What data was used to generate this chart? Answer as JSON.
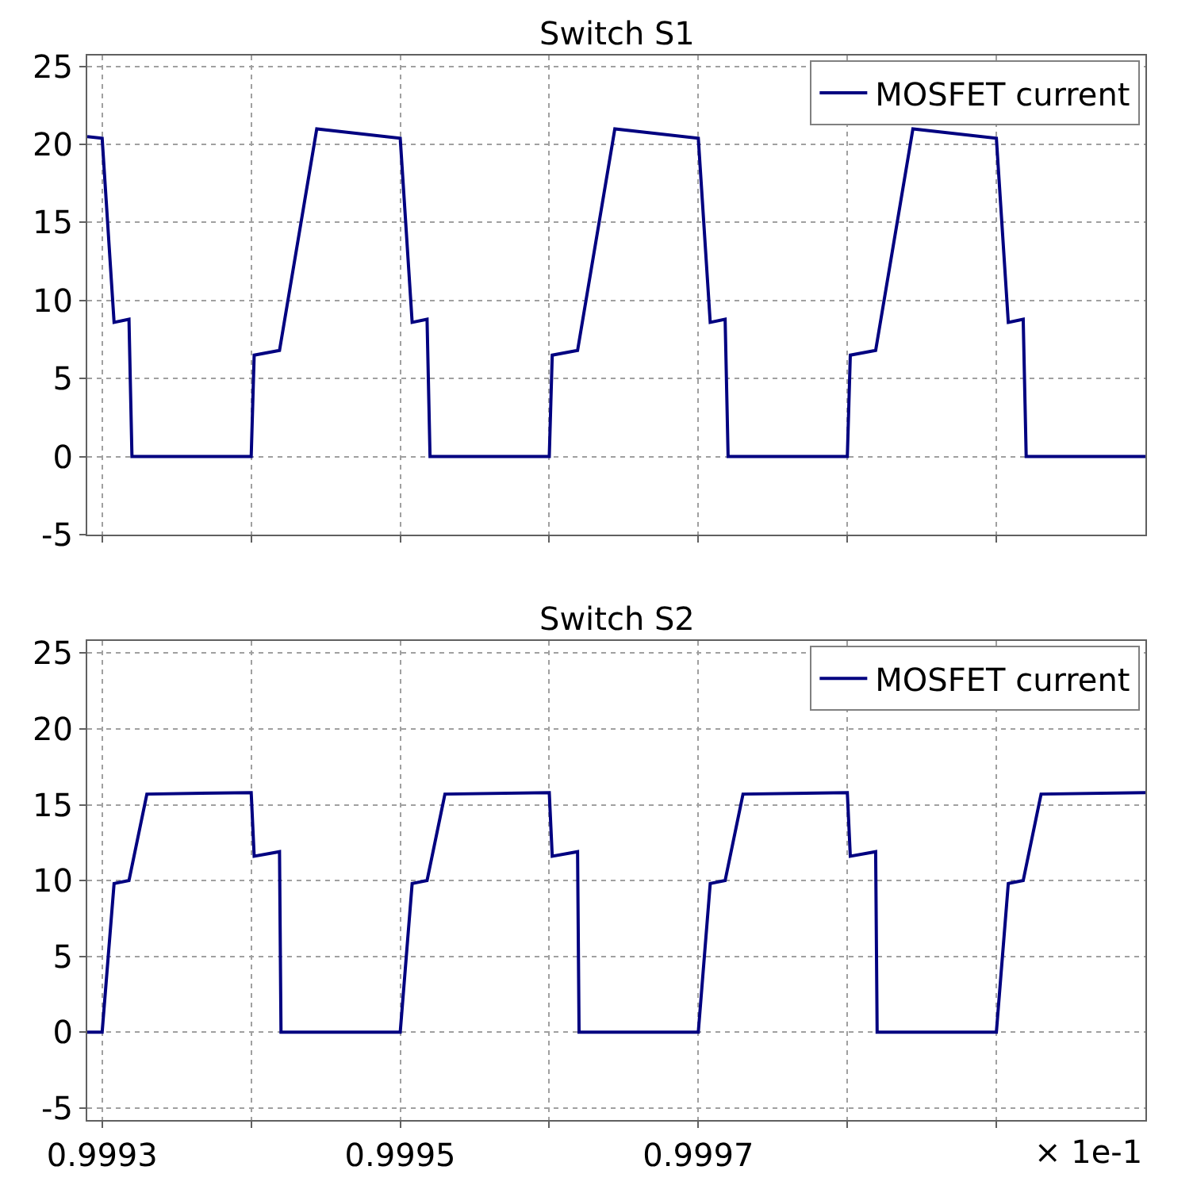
{
  "chart_data": [
    {
      "type": "line",
      "title": "Switch S1",
      "legend": "top right",
      "grid": true,
      "tick_labels": "y",
      "line_style": "solid",
      "marker": "none",
      "x": [
        0.99929,
        0.9993,
        0.999308,
        0.999318,
        0.99932,
        0.9994,
        0.999402,
        0.999419,
        0.999444,
        0.9995,
        0.999508,
        0.999518,
        0.99952,
        0.9996,
        0.999602,
        0.999619,
        0.999644,
        0.9997,
        0.999708,
        0.999718,
        0.99972,
        0.9998,
        0.999802,
        0.999819,
        0.999844,
        0.9999,
        0.999908,
        0.999918,
        0.99992,
        1.0
      ],
      "series": [
        {
          "name": "MOSFET current",
          "color": "#000080",
          "values": [
            20.5,
            20.4,
            8.6,
            8.8,
            0,
            0,
            6.5,
            6.8,
            21,
            20.4,
            8.6,
            8.8,
            0,
            0,
            6.5,
            6.8,
            21,
            20.4,
            8.6,
            8.8,
            0,
            0,
            6.5,
            6.8,
            21,
            20.4,
            8.6,
            8.8,
            0,
            0
          ]
        }
      ],
      "xlim": [
        0.99929,
        1.0
      ],
      "xticks": [
        0.9993,
        {
          "value": 0.9994,
          "label": null
        },
        0.9995,
        {
          "value": 0.9996,
          "label": null
        },
        0.9997,
        {
          "value": 0.9998,
          "label": null
        },
        {
          "value": 0.9999,
          "label": null
        }
      ],
      "ylim": [
        -5,
        25.7
      ],
      "yticks": [
        -5,
        0,
        5,
        10,
        15,
        20,
        25
      ]
    },
    {
      "type": "line",
      "title": "Switch S2",
      "legend": "top right",
      "grid": true,
      "line_style": "solid",
      "marker": "none",
      "x": [
        0.99929,
        0.9993,
        0.999308,
        0.999318,
        0.99933,
        0.9994,
        0.999402,
        0.999419,
        0.99942,
        0.9995,
        0.999508,
        0.999518,
        0.99953,
        0.9996,
        0.999602,
        0.999619,
        0.99962,
        0.9997,
        0.999708,
        0.999718,
        0.99973,
        0.9998,
        0.999802,
        0.999819,
        0.99982,
        0.9999,
        0.999908,
        0.999918,
        0.99993,
        1.0
      ],
      "series": [
        {
          "name": "MOSFET current",
          "color": "#000080",
          "values": [
            0,
            0,
            9.8,
            10,
            15.7,
            15.8,
            11.6,
            11.9,
            0,
            0,
            9.8,
            10,
            15.7,
            15.8,
            11.6,
            11.9,
            0,
            0,
            9.8,
            10,
            15.7,
            15.8,
            11.6,
            11.9,
            0,
            0,
            9.8,
            10,
            15.7,
            15.8
          ]
        }
      ],
      "xlim": [
        0.99929,
        1.0
      ],
      "xticks": [
        0.9993,
        {
          "value": 0.9994,
          "label": null
        },
        0.9995,
        {
          "value": 0.9996,
          "label": null
        },
        0.9997,
        {
          "value": 0.9998,
          "label": null
        },
        {
          "value": 0.9999,
          "label": null
        }
      ],
      "ylim": [
        -5.8,
        25.8
      ],
      "yticks": [
        -5,
        0,
        5,
        10,
        15,
        20,
        25
      ],
      "annotations": [
        "× 1e-1"
      ]
    }
  ]
}
